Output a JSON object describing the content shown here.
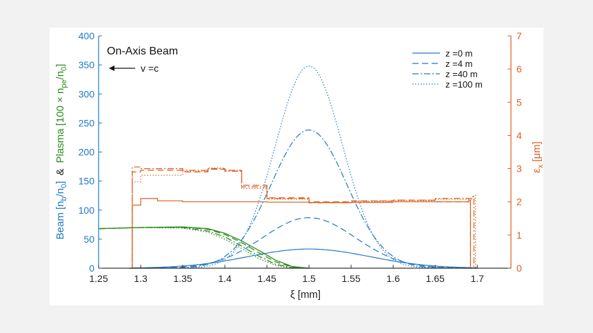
{
  "chart_data": {
    "type": "line",
    "annotation_title": "On-Axis Beam",
    "annotation_arrow": "v =c",
    "xlabel": "ξ [mm]",
    "ylabel_left": {
      "beam": "Beam [n",
      "beam_sub1": "b",
      "beam_mid": "/n",
      "beam_sub2": "0",
      "beam_end": "]",
      "amp": "&",
      "plasma": "Plasma [100 × n",
      "plasma_sub1": "pe",
      "plasma_mid": "/n",
      "plasma_sub2": "0",
      "plasma_end": "]"
    },
    "ylabel_right": {
      "main": "ε",
      "sub": "x",
      "unit": "[μm]"
    },
    "xlim": [
      1.25,
      1.74
    ],
    "ylim_left": [
      0,
      400
    ],
    "ylim_right": [
      0,
      7
    ],
    "xticks": [
      "1.25",
      "1.3",
      "1.35",
      "1.4",
      "1.45",
      "1.5",
      "1.55",
      "1.6",
      "1.65",
      "1.7"
    ],
    "yticks_left": [
      "0",
      "50",
      "100",
      "150",
      "200",
      "250",
      "300",
      "350",
      "400"
    ],
    "yticks_right": [
      "0",
      "1",
      "2",
      "3",
      "4",
      "5",
      "6",
      "7"
    ],
    "legend": [
      {
        "label": "z =0 m",
        "dash": "solid"
      },
      {
        "label": "z =4 m",
        "dash": "dashed"
      },
      {
        "label": "z =40 m",
        "dash": "dashdot"
      },
      {
        "label": "z =100 m",
        "dash": "dotted"
      }
    ],
    "colors": {
      "beam": "#1f77c4",
      "plasma": "#2a8a1e",
      "emittance": "#d95f1e",
      "axis_left": "#1f77c4",
      "axis_right": "#d95f1e"
    },
    "beam_density": {
      "center": 1.5,
      "x_range": [
        1.29,
        1.7
      ],
      "series": [
        {
          "name": "z =0 m",
          "peak": 33,
          "sigma": 0.072
        },
        {
          "name": "z =4 m",
          "peak": 87,
          "sigma": 0.055
        },
        {
          "name": "z =40 m",
          "peak": 238,
          "sigma": 0.045
        },
        {
          "name": "z =100 m",
          "peak": 348,
          "sigma": 0.04
        }
      ]
    },
    "plasma_density": {
      "x": [
        1.25,
        1.3,
        1.35,
        1.38,
        1.4,
        1.42,
        1.44,
        1.46,
        1.48,
        1.5
      ],
      "series": [
        {
          "name": "z =0 m",
          "values": [
            68,
            70,
            71,
            68,
            60,
            47,
            31,
            14,
            3,
            0
          ]
        },
        {
          "name": "z =4 m",
          "values": [
            68,
            70,
            71,
            67,
            58,
            44,
            27,
            11,
            2,
            0
          ]
        },
        {
          "name": "z =40 m",
          "values": [
            68,
            70,
            70,
            64,
            54,
            38,
            21,
            7,
            1,
            0
          ]
        },
        {
          "name": "z =100 m",
          "values": [
            68,
            70,
            69,
            62,
            50,
            34,
            17,
            5,
            0,
            0
          ]
        }
      ]
    },
    "emittance": {
      "series": [
        {
          "name": "z =0 m",
          "x": [
            1.287,
            1.29,
            1.3,
            1.32,
            1.35,
            1.4,
            1.45,
            1.5,
            1.55,
            1.6,
            1.65,
            1.69,
            1.692
          ],
          "values": [
            0,
            1.9,
            2.1,
            2.03,
            2.0,
            2.0,
            1.99,
            1.98,
            1.98,
            2.0,
            2.0,
            2.05,
            0
          ]
        },
        {
          "name": "z =4 m",
          "x": [
            1.287,
            1.29,
            1.3,
            1.35,
            1.38,
            1.4,
            1.42,
            1.45,
            1.5,
            1.55,
            1.6,
            1.65,
            1.69,
            1.692
          ],
          "values": [
            0,
            2.9,
            2.95,
            2.9,
            2.98,
            2.95,
            2.5,
            2.12,
            2.0,
            2.03,
            2.05,
            2.0,
            2.05,
            0
          ]
        },
        {
          "name": "z =40 m",
          "x": [
            1.287,
            1.29,
            1.3,
            1.35,
            1.38,
            1.4,
            1.42,
            1.45,
            1.5,
            1.55,
            1.6,
            1.65,
            1.694,
            1.696
          ],
          "values": [
            0,
            3.05,
            3.0,
            2.95,
            3.0,
            2.92,
            2.45,
            2.1,
            1.97,
            2.02,
            2.05,
            2.1,
            2.15,
            0
          ]
        },
        {
          "name": "z =100 m",
          "x": [
            1.287,
            1.29,
            1.3,
            1.35,
            1.38,
            1.4,
            1.42,
            1.45,
            1.5,
            1.55,
            1.6,
            1.65,
            1.696,
            1.698
          ],
          "values": [
            0,
            2.6,
            2.8,
            2.92,
            3.02,
            2.95,
            2.4,
            2.08,
            1.97,
            2.0,
            2.03,
            2.08,
            2.2,
            0
          ]
        }
      ]
    }
  }
}
